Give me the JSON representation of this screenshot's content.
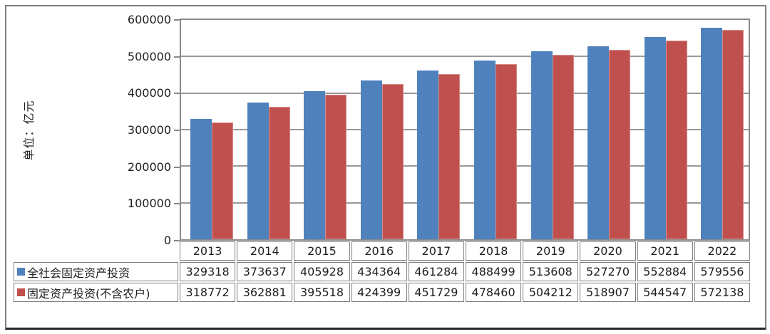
{
  "y_axis_title": "单位：亿元",
  "chart_data": {
    "type": "bar",
    "title": "",
    "xlabel": "",
    "ylabel": "单位：亿元",
    "categories": [
      "2013",
      "2014",
      "2015",
      "2016",
      "2017",
      "2018",
      "2019",
      "2020",
      "2021",
      "2022"
    ],
    "series": [
      {
        "name": "全社会固定资产投资",
        "color": "#4F81BD",
        "values": [
          329318,
          373637,
          405928,
          434364,
          461284,
          488499,
          513608,
          527270,
          552884,
          579556
        ]
      },
      {
        "name": "固定资产投资(不含农户)",
        "color": "#C0504D",
        "values": [
          318772,
          362881,
          395518,
          424399,
          451729,
          478460,
          504212,
          518907,
          544547,
          572138
        ]
      }
    ],
    "ylim": [
      0,
      600000
    ],
    "ytick_step": 100000,
    "grid": true,
    "legend_position": "data-table-left",
    "data_table_shown": true
  },
  "colors": {
    "bar_blue": "#4F81BD",
    "bar_red": "#C0504D",
    "gridline": "#999999",
    "plot_border": "#8a8a8a",
    "table_border": "#7f7f7f",
    "frame_border": "#808080",
    "frame_bottom": "#262626",
    "text": "#1f1f1f"
  }
}
